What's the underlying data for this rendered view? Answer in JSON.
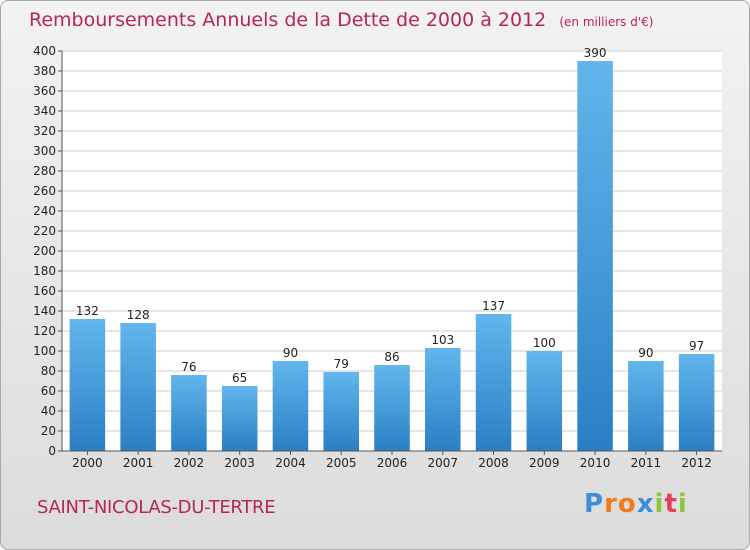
{
  "title": "Remboursements Annuels de la Dette de 2000 à 2012",
  "unit_note": "(en milliers d'€)",
  "town": "SAINT-NICOLAS-DU-TERTRE",
  "brand": {
    "letters": [
      "P",
      "r",
      "o",
      "x",
      "i",
      "t",
      "i"
    ],
    "colors": [
      "#3a8fd6",
      "#f07a1e",
      "#f07a1e",
      "#3a8fd6",
      "#8cc63f",
      "#e83e5c",
      "#8cc63f"
    ]
  },
  "colors": {
    "title": "#b8245c",
    "bar_light": "#62b6ec",
    "bar_dark": "#2a7fc4",
    "plot_background": "#ffffff",
    "grid": "#cccccc"
  },
  "chart_data": {
    "type": "bar",
    "categories": [
      "2000",
      "2001",
      "2002",
      "2003",
      "2004",
      "2005",
      "2006",
      "2007",
      "2008",
      "2009",
      "2010",
      "2011",
      "2012"
    ],
    "values": [
      132,
      128,
      76,
      65,
      90,
      79,
      86,
      103,
      137,
      100,
      390,
      90,
      97
    ],
    "data_labels": [
      "132",
      "128",
      "76",
      "65",
      "90",
      "79",
      "86",
      "103",
      "137",
      "100",
      "390",
      "90",
      "97"
    ],
    "yticks": [
      "0",
      "20",
      "40",
      "60",
      "80",
      "100",
      "120",
      "140",
      "160",
      "180",
      "200",
      "220",
      "240",
      "260",
      "280",
      "300",
      "320",
      "340",
      "360",
      "380",
      "400"
    ],
    "ylim": [
      0,
      400
    ],
    "ytick_step": 20,
    "grid": true,
    "legend": "none"
  }
}
